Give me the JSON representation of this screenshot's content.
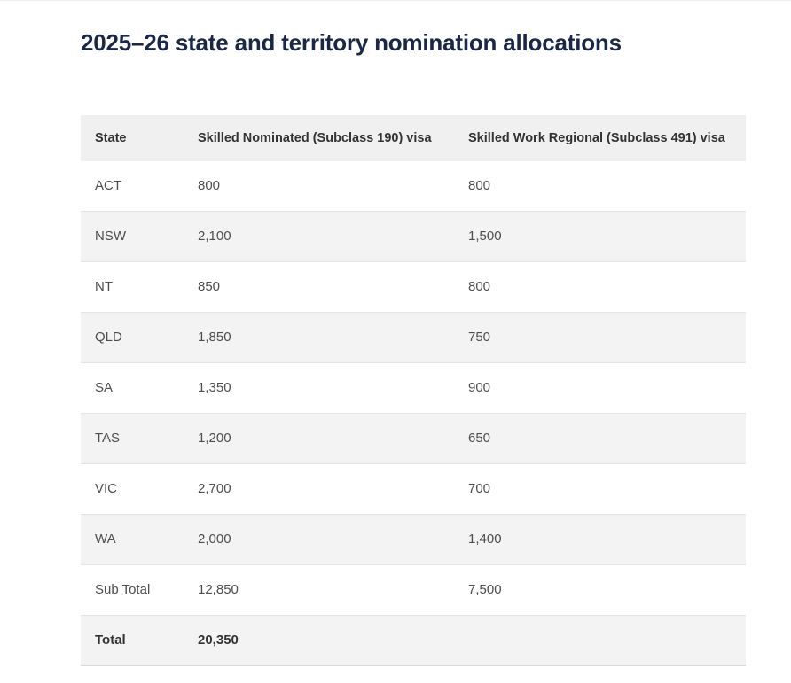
{
  "page": {
    "title": "2025–26 state and territory nomination allocations"
  },
  "table": {
    "columns": [
      "State",
      "Skilled Nominated (Subclass 190) visa",
      "Skilled Work Regional (Subclass 491) visa"
    ],
    "rows": [
      {
        "state": "ACT",
        "sc190": "800",
        "sc491": "800"
      },
      {
        "state": "NSW",
        "sc190": "2,100",
        "sc491": "1,500"
      },
      {
        "state": "NT",
        "sc190": "850",
        "sc491": "800"
      },
      {
        "state": "QLD",
        "sc190": "1,850",
        "sc491": "750"
      },
      {
        "state": "SA",
        "sc190": "1,350",
        "sc491": "900"
      },
      {
        "state": "TAS",
        "sc190": "1,200",
        "sc491": "650"
      },
      {
        "state": "VIC",
        "sc190": "2,700",
        "sc491": "700"
      },
      {
        "state": "WA",
        "sc190": "2,000",
        "sc491": "1,400"
      },
      {
        "state": "Sub Total",
        "sc190": "12,850",
        "sc491": "7,500"
      },
      {
        "state": "Total",
        "sc190": "20,350",
        "sc491": ""
      }
    ]
  },
  "colors": {
    "title_text": "#1a2746",
    "header_background": "#f0f0f0",
    "row_alternate_background": "#f3f3f3",
    "row_border": "#e4e4e4",
    "body_text": "#4d4d4d"
  }
}
